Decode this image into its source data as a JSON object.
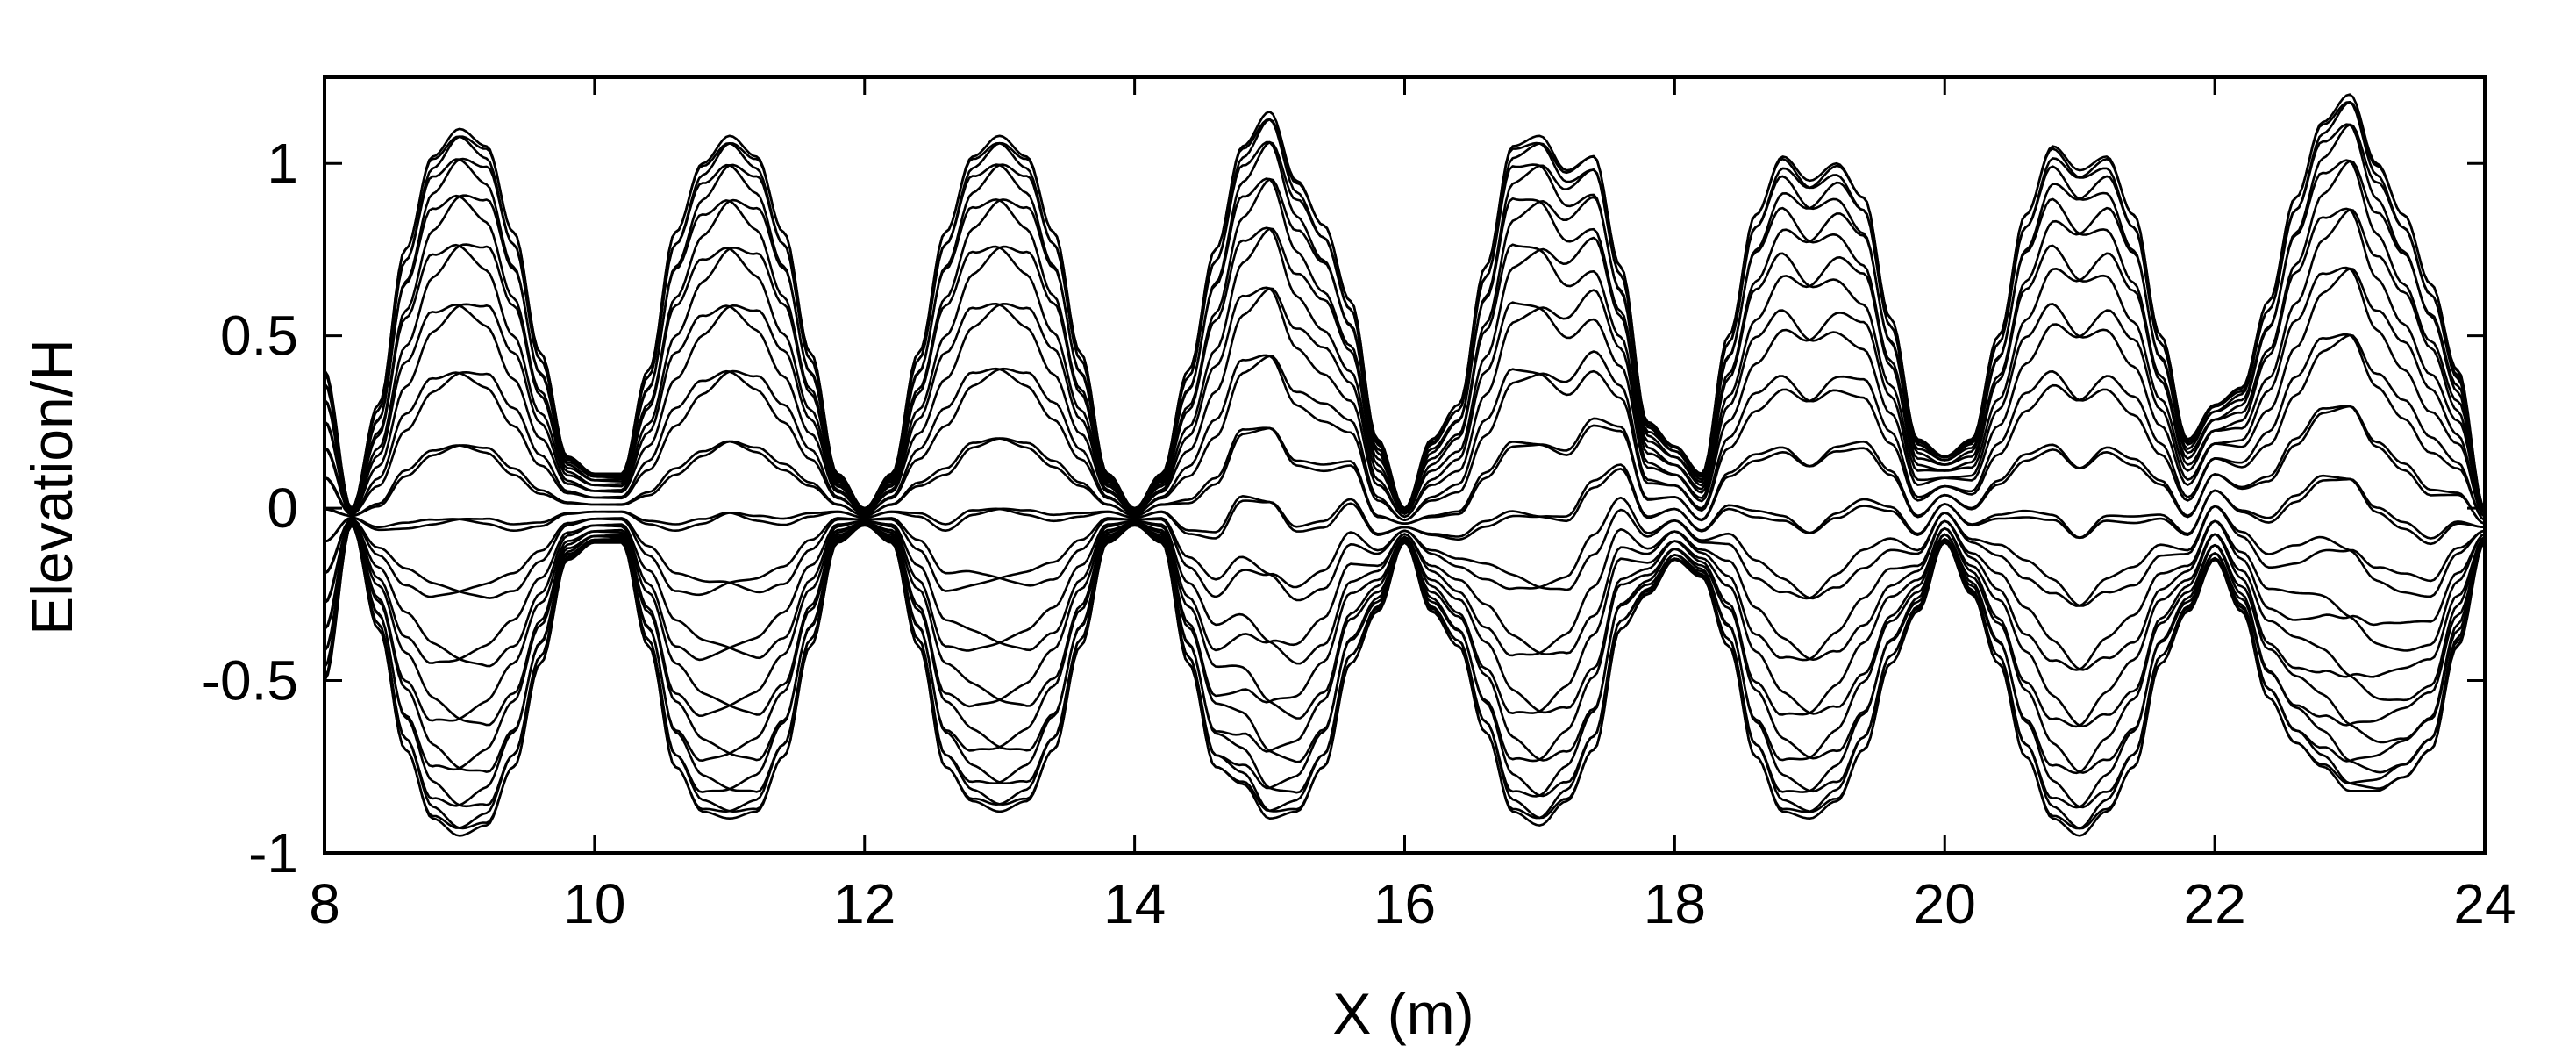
{
  "chart_data": {
    "type": "line",
    "title": "",
    "xlabel": "X (m)",
    "ylabel": "Elevation/H",
    "xlim": [
      8,
      24
    ],
    "ylim": [
      -1,
      1.25
    ],
    "xticks": [
      8,
      10,
      12,
      14,
      16,
      18,
      20,
      22,
      24
    ],
    "xtick_labels": [
      "8",
      "10",
      "12",
      "14",
      "16",
      "18",
      "20",
      "22",
      "24"
    ],
    "yticks": [
      -1,
      -0.5,
      0,
      0.5,
      1
    ],
    "ytick_labels": [
      "-1",
      "-0.5",
      "0",
      "0.5",
      "1"
    ],
    "grid": false,
    "legend": "none",
    "line_color": "#000000",
    "x_samples": [
      8.0,
      8.2,
      8.4,
      8.6,
      8.8,
      9.0,
      9.2,
      9.4,
      9.6,
      9.8,
      10.0,
      10.2,
      10.4,
      10.6,
      10.8,
      11.0,
      11.2,
      11.4,
      11.6,
      11.8,
      12.0,
      12.2,
      12.4,
      12.6,
      12.8,
      13.0,
      13.2,
      13.4,
      13.6,
      13.8,
      14.0,
      14.2,
      14.4,
      14.6,
      14.8,
      15.0,
      15.2,
      15.4,
      15.6,
      15.8,
      16.0,
      16.2,
      16.4,
      16.6,
      16.8,
      17.0,
      17.2,
      17.4,
      17.6,
      17.8,
      18.0,
      18.2,
      18.4,
      18.6,
      18.8,
      19.0,
      19.2,
      19.4,
      19.6,
      19.8,
      20.0,
      20.2,
      20.4,
      20.6,
      20.8,
      21.0,
      21.2,
      21.4,
      21.6,
      21.8,
      22.0,
      22.2,
      22.4,
      22.6,
      22.8,
      23.0,
      23.2,
      23.4,
      23.6,
      23.8,
      24.0
    ],
    "envelope": {
      "upper": [
        0.4,
        0.0,
        0.3,
        0.75,
        1.02,
        1.1,
        1.05,
        0.8,
        0.45,
        0.15,
        0.1,
        0.1,
        0.4,
        0.8,
        1.0,
        1.08,
        1.02,
        0.8,
        0.45,
        0.1,
        0.0,
        0.1,
        0.45,
        0.8,
        1.02,
        1.08,
        1.02,
        0.8,
        0.45,
        0.1,
        0.0,
        0.1,
        0.4,
        0.75,
        1.05,
        1.15,
        0.95,
        0.82,
        0.6,
        0.2,
        0.0,
        0.2,
        0.3,
        0.7,
        1.05,
        1.08,
        0.98,
        1.02,
        0.7,
        0.25,
        0.18,
        0.1,
        0.5,
        0.85,
        1.02,
        0.95,
        1.0,
        0.9,
        0.55,
        0.2,
        0.15,
        0.2,
        0.5,
        0.85,
        1.05,
        0.98,
        1.02,
        0.85,
        0.5,
        0.2,
        0.3,
        0.35,
        0.6,
        0.9,
        1.12,
        1.2,
        1.0,
        0.85,
        0.65,
        0.4,
        0.0
      ],
      "lower": [
        -0.5,
        -0.05,
        -0.35,
        -0.7,
        -0.9,
        -0.95,
        -0.92,
        -0.75,
        -0.45,
        -0.15,
        -0.1,
        -0.1,
        -0.4,
        -0.75,
        -0.88,
        -0.9,
        -0.88,
        -0.72,
        -0.4,
        -0.1,
        -0.05,
        -0.1,
        -0.4,
        -0.75,
        -0.85,
        -0.88,
        -0.85,
        -0.7,
        -0.4,
        -0.1,
        -0.05,
        -0.1,
        -0.45,
        -0.75,
        -0.8,
        -0.9,
        -0.88,
        -0.75,
        -0.45,
        -0.3,
        -0.1,
        -0.3,
        -0.4,
        -0.65,
        -0.88,
        -0.92,
        -0.85,
        -0.7,
        -0.35,
        -0.25,
        -0.15,
        -0.2,
        -0.4,
        -0.72,
        -0.88,
        -0.9,
        -0.85,
        -0.7,
        -0.45,
        -0.3,
        -0.1,
        -0.25,
        -0.45,
        -0.72,
        -0.9,
        -0.95,
        -0.88,
        -0.75,
        -0.45,
        -0.3,
        -0.15,
        -0.3,
        -0.55,
        -0.68,
        -0.75,
        -0.82,
        -0.82,
        -0.78,
        -0.7,
        -0.4,
        -0.1
      ]
    },
    "num_profiles": 30
  }
}
